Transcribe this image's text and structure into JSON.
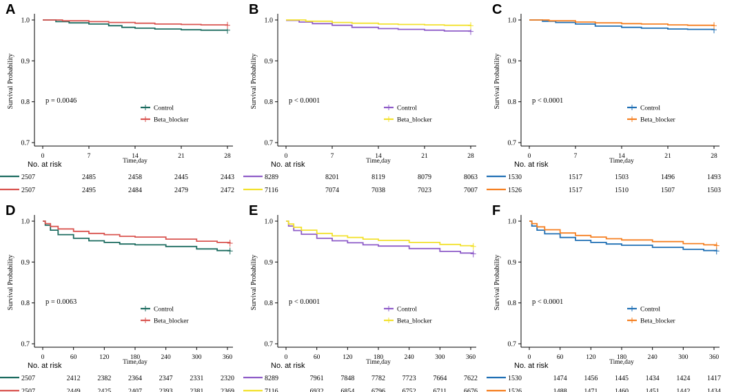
{
  "figure": {
    "colors": {
      "axis": "#000000",
      "text": "#000000"
    }
  },
  "chart_data": [
    {
      "panel": "A",
      "type": "line",
      "title": "",
      "xlabel": "Time,day",
      "ylabel": "Survival Probability",
      "x_ticks": [
        0,
        7,
        14,
        21,
        28
      ],
      "xlim": [
        0,
        28
      ],
      "y_ticks": [
        0.7,
        0.8,
        0.9,
        1.0
      ],
      "y_tick_labels": [
        "0.7",
        "0.8",
        "0.9",
        "1.0"
      ],
      "ylim": [
        0.7,
        1.0
      ],
      "p_value": "p = 0.0046",
      "risk_title": "No. at risk",
      "risk_first_label": [
        "2507",
        "2507"
      ],
      "legend": [
        "Control",
        "Beta_blocker"
      ],
      "series": [
        {
          "name": "Control",
          "color": "#1B6B5F",
          "x": [
            0,
            2,
            4,
            7,
            10,
            12,
            14,
            17,
            21,
            24,
            28
          ],
          "y": [
            1.0,
            0.996,
            0.993,
            0.99,
            0.986,
            0.982,
            0.98,
            0.978,
            0.976,
            0.975,
            0.975
          ],
          "risk": [
            2507,
            2485,
            2458,
            2445,
            2443
          ]
        },
        {
          "name": "Beta_blocker",
          "color": "#D9534F",
          "x": [
            0,
            3,
            7,
            10,
            14,
            17,
            21,
            24,
            28
          ],
          "y": [
            1.0,
            0.998,
            0.996,
            0.994,
            0.992,
            0.99,
            0.989,
            0.988,
            0.987
          ],
          "risk": [
            2507,
            2495,
            2484,
            2479,
            2472
          ]
        }
      ]
    },
    {
      "panel": "B",
      "type": "line",
      "title": "",
      "xlabel": "Time,day",
      "ylabel": "Survival Probability",
      "x_ticks": [
        0,
        7,
        14,
        21,
        28
      ],
      "xlim": [
        0,
        28
      ],
      "y_ticks": [
        0.7,
        0.8,
        0.9,
        1.0
      ],
      "y_tick_labels": [
        "0.7",
        "0.8",
        "0.9",
        "1.0"
      ],
      "ylim": [
        0.7,
        1.0
      ],
      "p_value": "p < 0.0001",
      "risk_title": "No. at risk",
      "risk_first_label": [
        "8289",
        "7116"
      ],
      "legend": [
        "Control",
        "Beta_blocker"
      ],
      "series": [
        {
          "name": "Control",
          "color": "#8E5CC8",
          "x": [
            0,
            2,
            4,
            7,
            10,
            14,
            17,
            21,
            24,
            28
          ],
          "y": [
            0.999,
            0.995,
            0.991,
            0.987,
            0.982,
            0.979,
            0.977,
            0.975,
            0.973,
            0.972
          ],
          "risk": [
            8289,
            8201,
            8119,
            8079,
            8063
          ]
        },
        {
          "name": "Beta_blocker",
          "color": "#F2E12C",
          "x": [
            0,
            3,
            7,
            10,
            14,
            17,
            21,
            24,
            28
          ],
          "y": [
            1.0,
            0.997,
            0.994,
            0.992,
            0.99,
            0.989,
            0.988,
            0.987,
            0.986
          ],
          "risk": [
            7116,
            7074,
            7038,
            7023,
            7007
          ]
        }
      ]
    },
    {
      "panel": "C",
      "type": "line",
      "title": "",
      "xlabel": "Time,day",
      "ylabel": "Survival Probability",
      "x_ticks": [
        0,
        7,
        14,
        21,
        28
      ],
      "xlim": [
        0,
        28
      ],
      "y_ticks": [
        0.7,
        0.8,
        0.9,
        1.0
      ],
      "y_tick_labels": [
        "0.7",
        "0.8",
        "0.9",
        "1.0"
      ],
      "ylim": [
        0.7,
        1.0
      ],
      "p_value": "p < 0.0001",
      "risk_title": "No. at risk",
      "risk_first_label": [
        "1530",
        "1526"
      ],
      "legend": [
        "Control",
        "Beta_blocker"
      ],
      "series": [
        {
          "name": "Control",
          "color": "#1F6FB4",
          "x": [
            0,
            2,
            4,
            7,
            10,
            14,
            17,
            21,
            24,
            28
          ],
          "y": [
            1.0,
            0.997,
            0.994,
            0.99,
            0.985,
            0.982,
            0.98,
            0.978,
            0.977,
            0.976
          ],
          "risk": [
            1530,
            1517,
            1503,
            1496,
            1493
          ]
        },
        {
          "name": "Beta_blocker",
          "color": "#F57F20",
          "x": [
            0,
            3,
            7,
            10,
            14,
            17,
            21,
            24,
            28
          ],
          "y": [
            1.0,
            0.998,
            0.995,
            0.993,
            0.991,
            0.99,
            0.988,
            0.987,
            0.986
          ],
          "risk": [
            1526,
            1517,
            1510,
            1507,
            1503
          ]
        }
      ]
    },
    {
      "panel": "D",
      "type": "line",
      "title": "",
      "xlabel": "Time,day",
      "ylabel": "Survival Probability",
      "x_ticks": [
        0,
        60,
        120,
        180,
        240,
        300,
        360
      ],
      "xlim": [
        0,
        360
      ],
      "y_ticks": [
        0.7,
        0.8,
        0.9,
        1.0
      ],
      "y_tick_labels": [
        "0.7",
        "0.8",
        "0.9",
        "1.0"
      ],
      "ylim": [
        0.7,
        1.0
      ],
      "p_value": "p = 0.0063",
      "risk_title": "No. at risk",
      "risk_first_label": [
        "2507",
        "2507"
      ],
      "legend": [
        "Control",
        "Beta_blocker"
      ],
      "series": [
        {
          "name": "Control",
          "color": "#1B6B5F",
          "x": [
            0,
            5,
            15,
            30,
            60,
            90,
            120,
            150,
            180,
            240,
            300,
            340,
            365
          ],
          "y": [
            1.0,
            0.99,
            0.978,
            0.967,
            0.958,
            0.952,
            0.948,
            0.944,
            0.942,
            0.938,
            0.932,
            0.928,
            0.927
          ],
          "risk": [
            2507,
            2412,
            2382,
            2364,
            2347,
            2331,
            2320
          ]
        },
        {
          "name": "Beta_blocker",
          "color": "#D9534F",
          "x": [
            0,
            5,
            15,
            30,
            60,
            90,
            120,
            150,
            180,
            240,
            300,
            340,
            365
          ],
          "y": [
            1.0,
            0.994,
            0.987,
            0.981,
            0.975,
            0.97,
            0.967,
            0.963,
            0.961,
            0.956,
            0.951,
            0.948,
            0.946
          ],
          "risk": [
            2507,
            2449,
            2425,
            2407,
            2393,
            2381,
            2369
          ]
        }
      ]
    },
    {
      "panel": "E",
      "type": "line",
      "title": "",
      "xlabel": "Time,day",
      "ylabel": "Survival Probability",
      "x_ticks": [
        0,
        60,
        120,
        180,
        240,
        300,
        360
      ],
      "xlim": [
        0,
        360
      ],
      "y_ticks": [
        0.7,
        0.8,
        0.9,
        1.0
      ],
      "y_tick_labels": [
        "0.7",
        "0.8",
        "0.9",
        "1.0"
      ],
      "ylim": [
        0.7,
        1.0
      ],
      "p_value": "p < 0.0001",
      "risk_title": "No. at risk",
      "risk_first_label": [
        "8289",
        "7116"
      ],
      "legend": [
        "Control",
        "Beta_blocker"
      ],
      "series": [
        {
          "name": "Control",
          "color": "#8E5CC8",
          "x": [
            0,
            5,
            15,
            30,
            60,
            90,
            120,
            150,
            180,
            240,
            300,
            340,
            365
          ],
          "y": [
            1.0,
            0.988,
            0.977,
            0.968,
            0.958,
            0.952,
            0.947,
            0.942,
            0.939,
            0.933,
            0.926,
            0.922,
            0.92
          ],
          "risk": [
            8289,
            7961,
            7848,
            7782,
            7723,
            7664,
            7622
          ]
        },
        {
          "name": "Beta_blocker",
          "color": "#F2E12C",
          "x": [
            0,
            5,
            15,
            30,
            60,
            90,
            120,
            150,
            180,
            240,
            300,
            340,
            365
          ],
          "y": [
            1.0,
            0.993,
            0.985,
            0.978,
            0.97,
            0.964,
            0.96,
            0.956,
            0.953,
            0.948,
            0.943,
            0.94,
            0.938
          ],
          "risk": [
            7116,
            6932,
            6854,
            6796,
            6752,
            6711,
            6676
          ]
        }
      ]
    },
    {
      "panel": "F",
      "type": "line",
      "title": "",
      "xlabel": "Time,day",
      "ylabel": "Survival Probability",
      "x_ticks": [
        0,
        60,
        120,
        180,
        240,
        300,
        360
      ],
      "xlim": [
        0,
        360
      ],
      "y_ticks": [
        0.7,
        0.8,
        0.9,
        1.0
      ],
      "y_tick_labels": [
        "0.7",
        "0.8",
        "0.9",
        "1.0"
      ],
      "ylim": [
        0.7,
        1.0
      ],
      "p_value": "p < 0.0001",
      "risk_title": "No. at risk",
      "risk_first_label": [
        "1530",
        "1526"
      ],
      "legend": [
        "Control",
        "Beta_blocker"
      ],
      "series": [
        {
          "name": "Control",
          "color": "#1F6FB4",
          "x": [
            0,
            5,
            15,
            30,
            60,
            90,
            120,
            150,
            180,
            240,
            300,
            340,
            365
          ],
          "y": [
            1.0,
            0.988,
            0.978,
            0.969,
            0.96,
            0.953,
            0.948,
            0.944,
            0.941,
            0.936,
            0.931,
            0.928,
            0.927
          ],
          "risk": [
            1530,
            1474,
            1456,
            1445,
            1434,
            1424,
            1417
          ]
        },
        {
          "name": "Beta_blocker",
          "color": "#F57F20",
          "x": [
            0,
            5,
            15,
            30,
            60,
            90,
            120,
            150,
            180,
            240,
            300,
            340,
            365
          ],
          "y": [
            1.0,
            0.994,
            0.986,
            0.979,
            0.971,
            0.965,
            0.961,
            0.957,
            0.954,
            0.95,
            0.945,
            0.942,
            0.94
          ],
          "risk": [
            1526,
            1488,
            1471,
            1460,
            1451,
            1442,
            1434
          ]
        }
      ]
    }
  ]
}
